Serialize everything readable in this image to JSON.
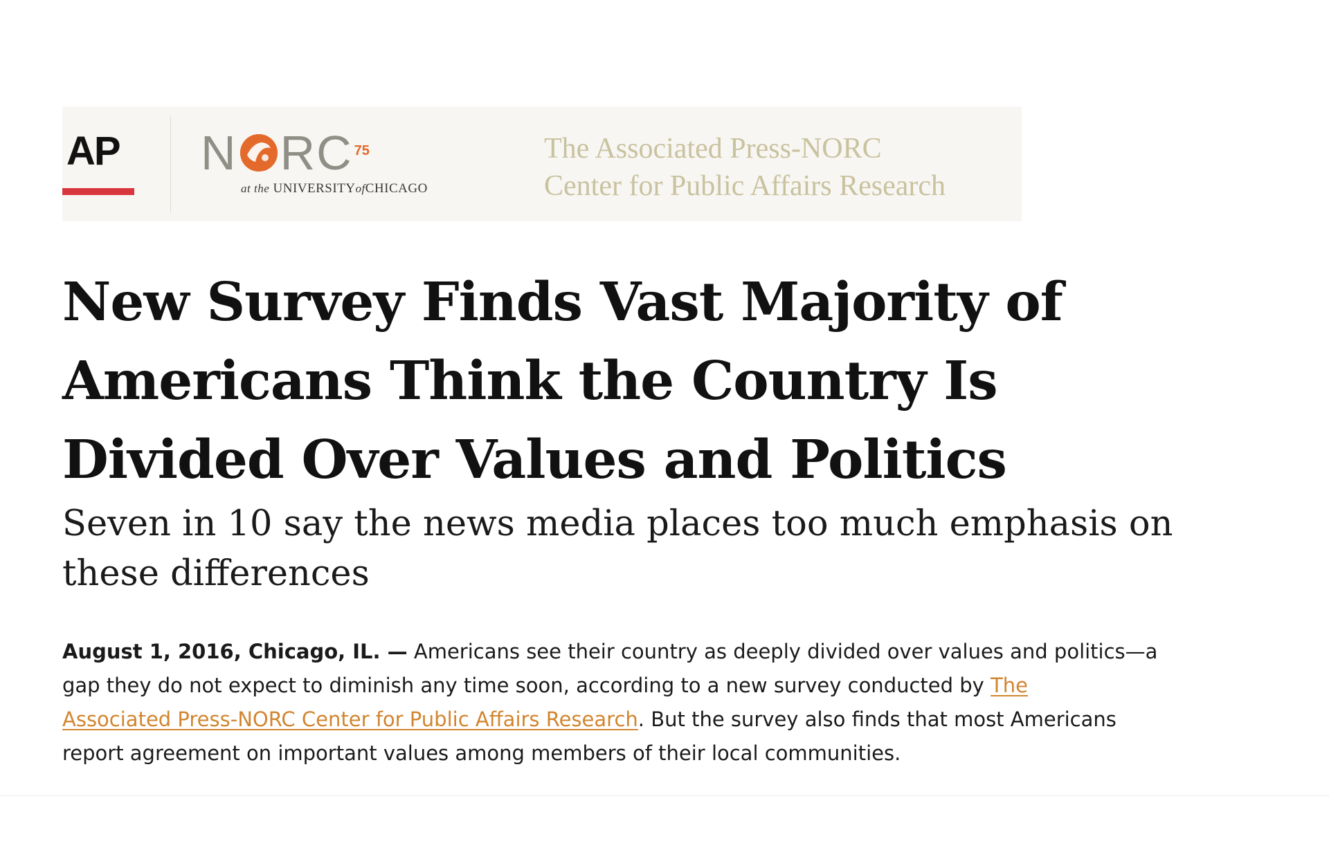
{
  "header": {
    "ap_logo_text": "AP",
    "norc": {
      "letters_before_o": "N",
      "letters_after_o": "RC",
      "superscript": "75",
      "subline_prefix": "at the",
      "subline_university": "UNIVERSITY",
      "subline_of": "of",
      "subline_city": "CHICAGO"
    },
    "center_name_line1": "The Associated Press-NORC",
    "center_name_line2": "Center for Public Affairs Research",
    "colors": {
      "ap_bar": "#d7363d",
      "norc_orange": "#e46a2c",
      "center_name": "#c9c29f",
      "link": "#d2852f"
    }
  },
  "article": {
    "headline_line1": "New Survey Finds Vast Majority of",
    "headline_line2": "Americans Think the Country Is",
    "headline_line3": "Divided Over Values and Politics",
    "subheadline_line1": "Seven in 10 say the news media places too much emphasis on",
    "subheadline_line2": "these differences",
    "body": {
      "dateline": "August 1, 2016, Chicago, IL. —",
      "line1_text": " Americans see their country as deeply divided over values and politics—a",
      "line2_text": "gap they do not expect to diminish any time soon, according to a new survey conducted by ",
      "link_part1": "The",
      "link_part2": "Associated Press-NORC Center for Public Affairs Research",
      "line3_text": ". But the survey also finds that most Americans",
      "line4_text": "report agreement on important values among members of their local communities."
    }
  }
}
